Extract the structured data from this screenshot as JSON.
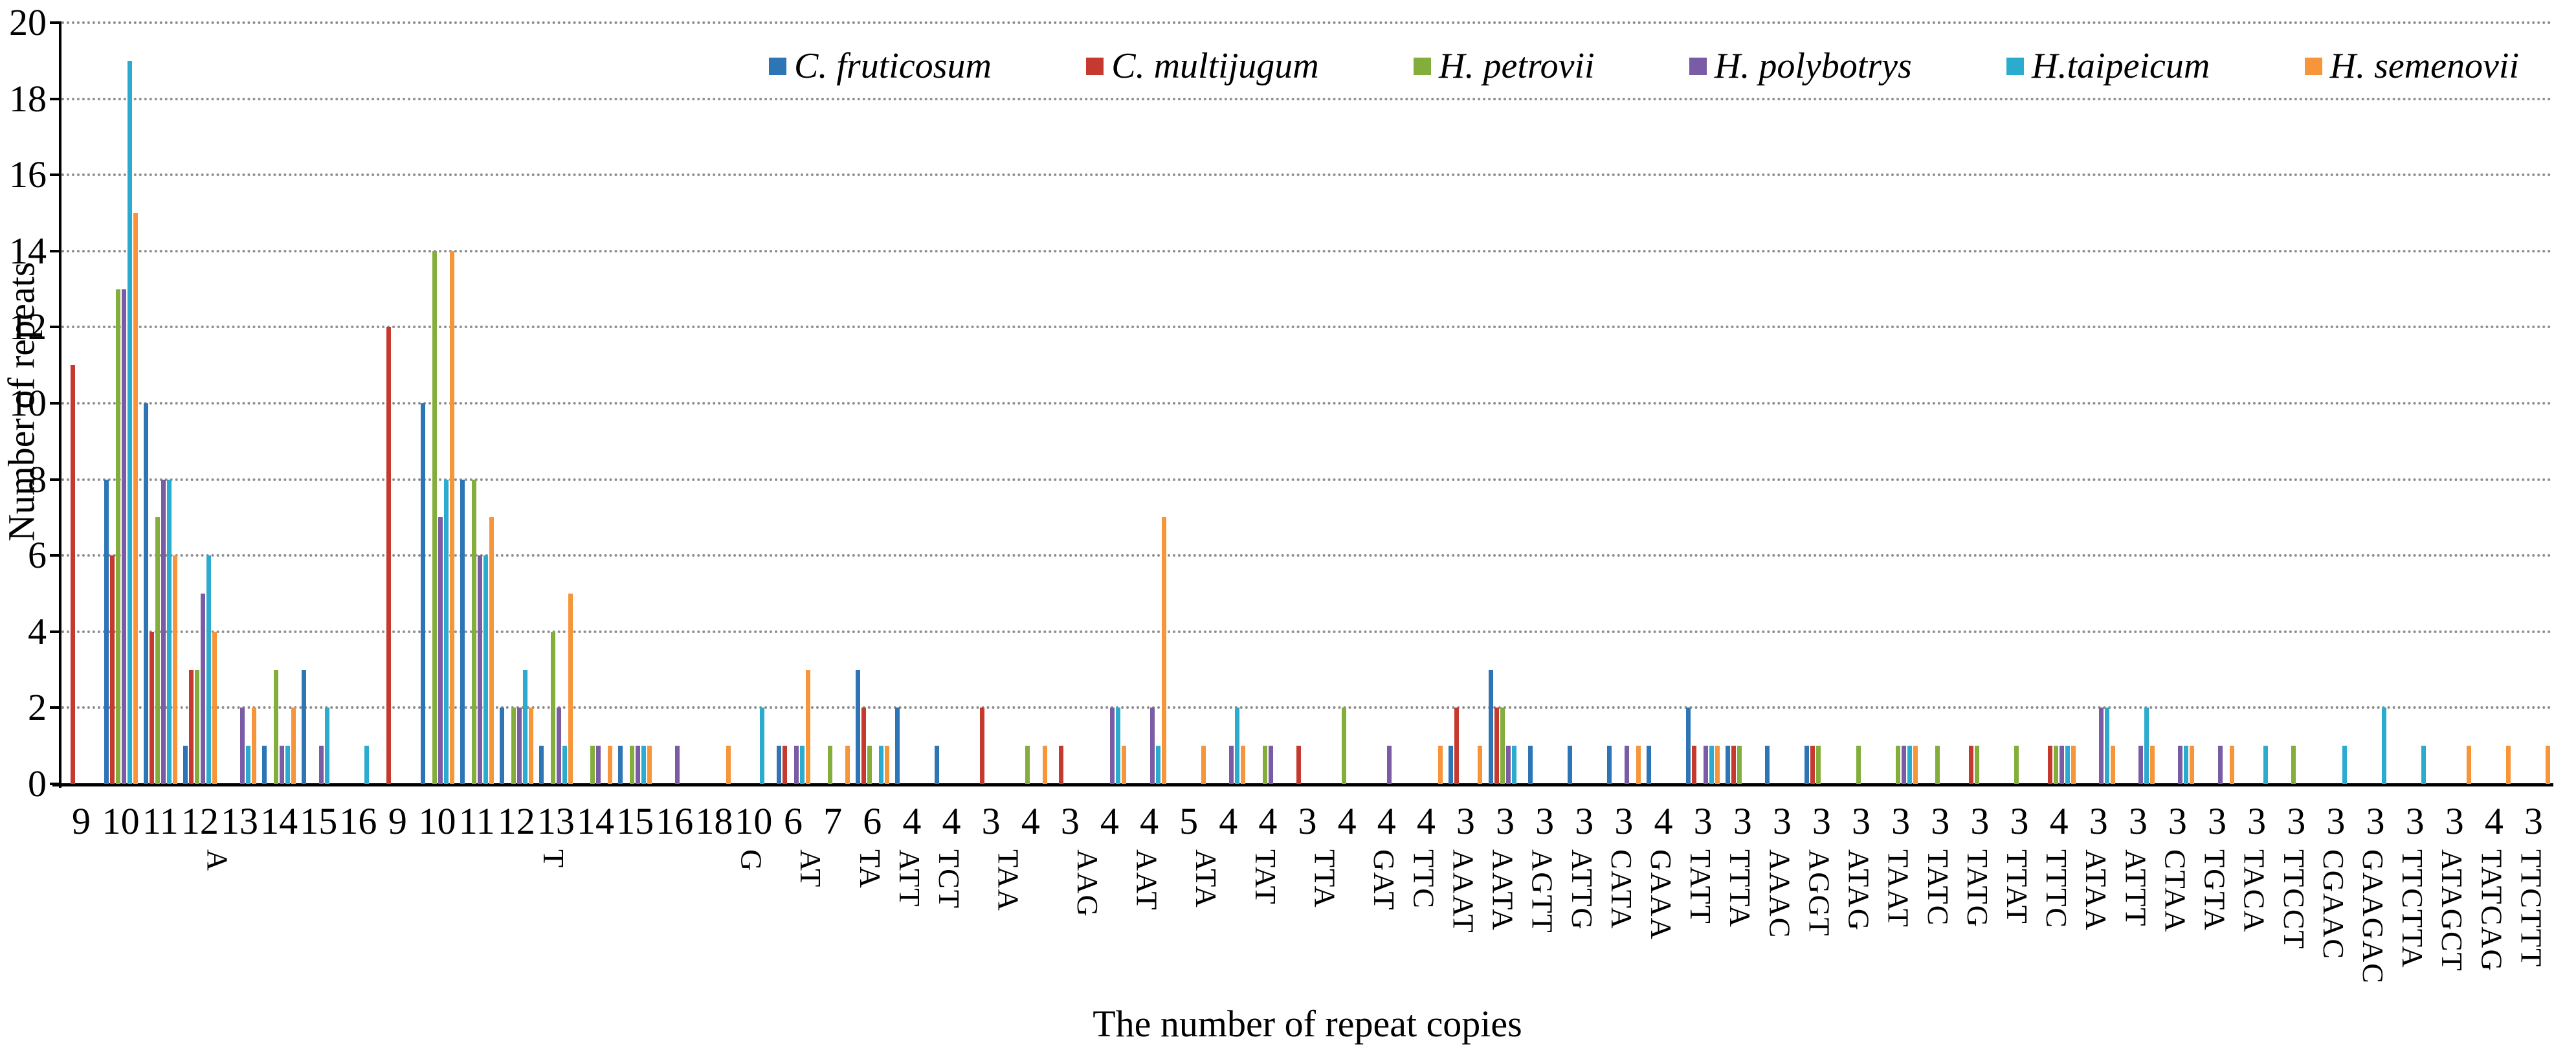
{
  "figure": {
    "y_axis_title": "Number of repeats",
    "x_axis_title": "The number of repeat copies"
  },
  "legend": {
    "position": "top",
    "items": [
      {
        "label": "C. fruticosum",
        "color": "#2E75B6"
      },
      {
        "label": "C. multijugum",
        "color": "#C6392F"
      },
      {
        "label": "H. petrovii",
        "color": "#84AE3C"
      },
      {
        "label": "H. polybotrys",
        "color": "#7A5BA6"
      },
      {
        "label": "H.taipeicum",
        "color": "#2BACCE"
      },
      {
        "label": "H. semenovii",
        "color": "#F7953B"
      }
    ]
  },
  "chart_data": {
    "type": "bar",
    "title": "",
    "xlabel": "The number of repeat copies",
    "ylabel": "Number of repeats",
    "ylim": [
      0,
      20
    ],
    "y_ticks": [
      0,
      2,
      4,
      6,
      8,
      10,
      12,
      14,
      16,
      18,
      20
    ],
    "grid": "horizontal-dotted",
    "gridline_color": "#8f8f8f",
    "axis_color": "#000000",
    "legend_position": "top",
    "series": [
      {
        "name": "C. fruticosum",
        "color": "#2E75B6"
      },
      {
        "name": "C. multijugum",
        "color": "#C6392F"
      },
      {
        "name": "H. petrovii",
        "color": "#84AE3C"
      },
      {
        "name": "H. polybotrys",
        "color": "#7A5BA6"
      },
      {
        "name": "H.taipeicum",
        "color": "#2BACCE"
      },
      {
        "name": "H. semenovii",
        "color": "#F7953B"
      }
    ],
    "values_order": [
      "C. fruticosum",
      "C. multijugum",
      "H. petrovii",
      "H. polybotrys",
      "H.taipeicum",
      "H. semenovii"
    ],
    "groups": [
      {
        "motif": "A",
        "copies": 9,
        "values": [
          0,
          11,
          0,
          0,
          0,
          0
        ]
      },
      {
        "motif": "A",
        "copies": 10,
        "values": [
          8,
          6,
          13,
          13,
          19,
          15
        ]
      },
      {
        "motif": "A",
        "copies": 11,
        "values": [
          10,
          4,
          7,
          8,
          8,
          6
        ]
      },
      {
        "motif": "A",
        "copies": 12,
        "values": [
          1,
          3,
          3,
          5,
          6,
          4
        ]
      },
      {
        "motif": "A",
        "copies": 13,
        "values": [
          0,
          0,
          0,
          2,
          1,
          2
        ]
      },
      {
        "motif": "A",
        "copies": 14,
        "values": [
          1,
          0,
          3,
          1,
          1,
          2
        ]
      },
      {
        "motif": "A",
        "copies": 15,
        "values": [
          3,
          0,
          0,
          1,
          2,
          0
        ]
      },
      {
        "motif": "A",
        "copies": 16,
        "values": [
          0,
          0,
          0,
          0,
          1,
          0
        ]
      },
      {
        "motif": "T",
        "copies": 9,
        "values": [
          0,
          12,
          0,
          0,
          0,
          0
        ]
      },
      {
        "motif": "T",
        "copies": 10,
        "values": [
          10,
          0,
          14,
          7,
          8,
          14
        ]
      },
      {
        "motif": "T",
        "copies": 11,
        "values": [
          8,
          0,
          8,
          6,
          6,
          7
        ]
      },
      {
        "motif": "T",
        "copies": 12,
        "values": [
          2,
          0,
          2,
          2,
          3,
          2
        ]
      },
      {
        "motif": "T",
        "copies": 13,
        "values": [
          1,
          0,
          4,
          2,
          1,
          5
        ]
      },
      {
        "motif": "T",
        "copies": 14,
        "values": [
          0,
          0,
          1,
          1,
          0,
          1
        ]
      },
      {
        "motif": "T",
        "copies": 15,
        "values": [
          1,
          0,
          1,
          1,
          1,
          1
        ]
      },
      {
        "motif": "T",
        "copies": 16,
        "values": [
          0,
          0,
          0,
          1,
          0,
          0
        ]
      },
      {
        "motif": "T",
        "copies": 18,
        "values": [
          0,
          0,
          0,
          0,
          0,
          1
        ]
      },
      {
        "motif": "G",
        "copies": 10,
        "values": [
          0,
          0,
          0,
          0,
          2,
          0
        ]
      },
      {
        "motif": "AT",
        "copies": 6,
        "values": [
          1,
          1,
          0,
          1,
          1,
          3
        ]
      },
      {
        "motif": "AT",
        "copies": 7,
        "values": [
          0,
          0,
          1,
          0,
          0,
          1
        ]
      },
      {
        "motif": "TA",
        "copies": 6,
        "values": [
          3,
          2,
          1,
          0,
          1,
          1
        ]
      },
      {
        "motif": "ATT",
        "copies": 4,
        "values": [
          2,
          0,
          0,
          0,
          0,
          0
        ]
      },
      {
        "motif": "TCT",
        "copies": 4,
        "values": [
          1,
          0,
          0,
          0,
          0,
          0
        ]
      },
      {
        "motif": "TAA",
        "copies": 3,
        "values": [
          0,
          2,
          0,
          0,
          0,
          0
        ]
      },
      {
        "motif": "TAA",
        "copies": 4,
        "values": [
          0,
          0,
          1,
          0,
          0,
          1
        ]
      },
      {
        "motif": "AAG",
        "copies": 3,
        "values": [
          0,
          1,
          0,
          0,
          0,
          0
        ]
      },
      {
        "motif": "AAG",
        "copies": 4,
        "values": [
          0,
          0,
          0,
          2,
          2,
          1
        ]
      },
      {
        "motif": "AAT",
        "copies": 4,
        "values": [
          0,
          0,
          0,
          2,
          1,
          7
        ]
      },
      {
        "motif": "ATA",
        "copies": 5,
        "values": [
          0,
          0,
          0,
          0,
          0,
          1
        ]
      },
      {
        "motif": "ATA",
        "copies": 4,
        "values": [
          0,
          0,
          0,
          1,
          2,
          1
        ]
      },
      {
        "motif": "TAT",
        "copies": 4,
        "values": [
          0,
          0,
          1,
          1,
          0,
          0
        ]
      },
      {
        "motif": "TTA",
        "copies": 3,
        "values": [
          0,
          1,
          0,
          0,
          0,
          0
        ]
      },
      {
        "motif": "TTA",
        "copies": 4,
        "values": [
          0,
          0,
          2,
          0,
          0,
          0
        ]
      },
      {
        "motif": "GAT",
        "copies": 4,
        "values": [
          0,
          0,
          0,
          1,
          0,
          0
        ]
      },
      {
        "motif": "TTC",
        "copies": 4,
        "values": [
          0,
          0,
          0,
          0,
          0,
          1
        ]
      },
      {
        "motif": "AAAT",
        "copies": 3,
        "values": [
          1,
          2,
          0,
          0,
          0,
          1
        ]
      },
      {
        "motif": "AATA",
        "copies": 3,
        "values": [
          3,
          2,
          2,
          1,
          1,
          0
        ]
      },
      {
        "motif": "AGTT",
        "copies": 3,
        "values": [
          1,
          0,
          0,
          0,
          0,
          0
        ]
      },
      {
        "motif": "ATTG",
        "copies": 3,
        "values": [
          1,
          0,
          0,
          0,
          0,
          0
        ]
      },
      {
        "motif": "CATA",
        "copies": 3,
        "values": [
          1,
          0,
          0,
          1,
          0,
          1
        ]
      },
      {
        "motif": "GAAA",
        "copies": 4,
        "values": [
          1,
          0,
          0,
          0,
          0,
          0
        ]
      },
      {
        "motif": "TATT",
        "copies": 3,
        "values": [
          2,
          1,
          0,
          1,
          1,
          1
        ]
      },
      {
        "motif": "TTTA",
        "copies": 3,
        "values": [
          1,
          1,
          1,
          0,
          0,
          0
        ]
      },
      {
        "motif": "AAAC",
        "copies": 3,
        "values": [
          1,
          0,
          0,
          0,
          0,
          0
        ]
      },
      {
        "motif": "AGGT",
        "copies": 3,
        "values": [
          1,
          1,
          1,
          0,
          0,
          0
        ]
      },
      {
        "motif": "ATAG",
        "copies": 3,
        "values": [
          0,
          0,
          1,
          0,
          0,
          0
        ]
      },
      {
        "motif": "TAAT",
        "copies": 3,
        "values": [
          0,
          0,
          1,
          1,
          1,
          1
        ]
      },
      {
        "motif": "TATC",
        "copies": 3,
        "values": [
          0,
          0,
          1,
          0,
          0,
          0
        ]
      },
      {
        "motif": "TATG",
        "copies": 3,
        "values": [
          0,
          1,
          1,
          0,
          0,
          0
        ]
      },
      {
        "motif": "TTAT",
        "copies": 3,
        "values": [
          0,
          0,
          1,
          0,
          0,
          0
        ]
      },
      {
        "motif": "TTTC",
        "copies": 4,
        "values": [
          0,
          1,
          1,
          1,
          1,
          1
        ]
      },
      {
        "motif": "ATAA",
        "copies": 3,
        "values": [
          0,
          0,
          0,
          2,
          2,
          1
        ]
      },
      {
        "motif": "ATTT",
        "copies": 3,
        "values": [
          0,
          0,
          0,
          1,
          2,
          1
        ]
      },
      {
        "motif": "CTAA",
        "copies": 3,
        "values": [
          0,
          0,
          0,
          1,
          1,
          1
        ]
      },
      {
        "motif": "TGTA",
        "copies": 3,
        "values": [
          0,
          0,
          0,
          1,
          0,
          1
        ]
      },
      {
        "motif": "TACA",
        "copies": 3,
        "values": [
          0,
          0,
          0,
          0,
          1,
          0
        ]
      },
      {
        "motif": "TTCCT",
        "copies": 3,
        "values": [
          0,
          0,
          1,
          0,
          0,
          0
        ]
      },
      {
        "motif": "CGAAC",
        "copies": 3,
        "values": [
          0,
          0,
          0,
          0,
          1,
          0
        ]
      },
      {
        "motif": "GAAGAC",
        "copies": 3,
        "values": [
          0,
          0,
          0,
          0,
          2,
          0
        ]
      },
      {
        "motif": "TTCTTA",
        "copies": 3,
        "values": [
          0,
          0,
          0,
          0,
          1,
          0
        ]
      },
      {
        "motif": "ATAGCT",
        "copies": 3,
        "values": [
          0,
          0,
          0,
          0,
          0,
          1
        ]
      },
      {
        "motif": "TATCAG",
        "copies": 4,
        "values": [
          0,
          0,
          0,
          0,
          0,
          1
        ]
      },
      {
        "motif": "TTCTTT",
        "copies": 3,
        "values": [
          0,
          0,
          0,
          0,
          0,
          1
        ]
      }
    ]
  }
}
